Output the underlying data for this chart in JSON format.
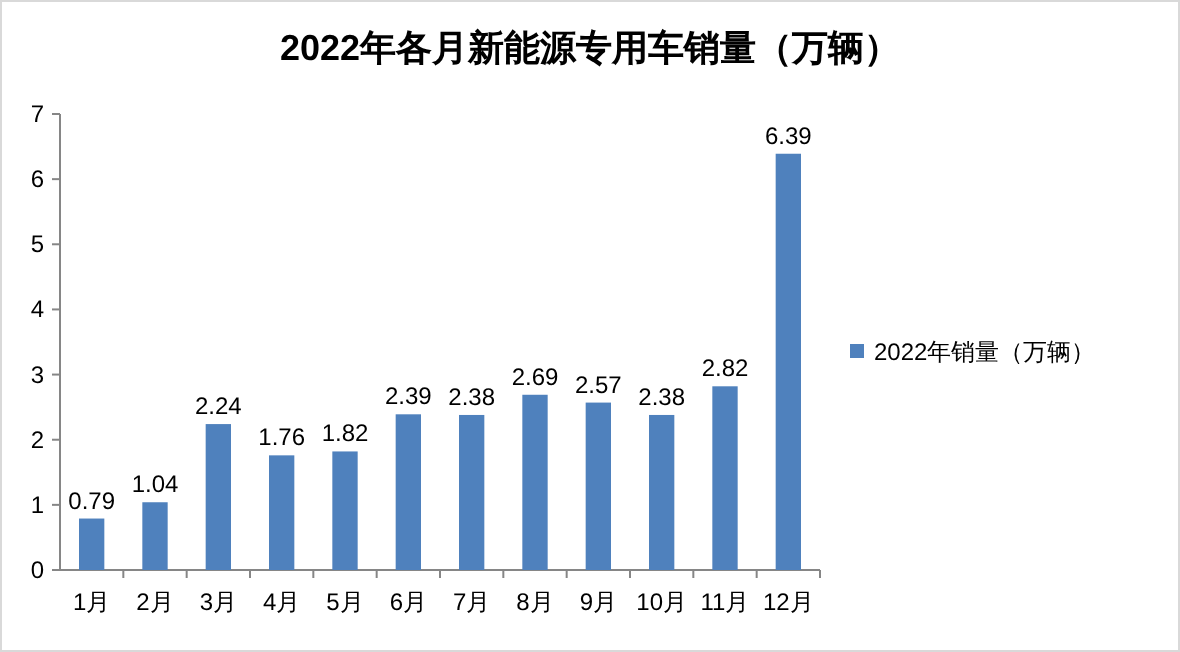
{
  "chart_data": {
    "type": "bar",
    "title": "2022年各月新能源专用车销量（万辆）",
    "categories": [
      "1月",
      "2月",
      "3月",
      "4月",
      "5月",
      "6月",
      "7月",
      "8月",
      "9月",
      "10月",
      "11月",
      "12月"
    ],
    "series": [
      {
        "name": "2022年销量（万辆）",
        "color": "#4f81bd",
        "values": [
          0.79,
          1.04,
          2.24,
          1.76,
          1.82,
          2.39,
          2.38,
          2.69,
          2.57,
          2.38,
          2.82,
          6.39
        ]
      }
    ],
    "ylim": [
      0,
      7
    ],
    "yticks": [
      0,
      1,
      2,
      3,
      4,
      5,
      6,
      7
    ],
    "data_labels": true,
    "legend": "right",
    "grid": false
  }
}
